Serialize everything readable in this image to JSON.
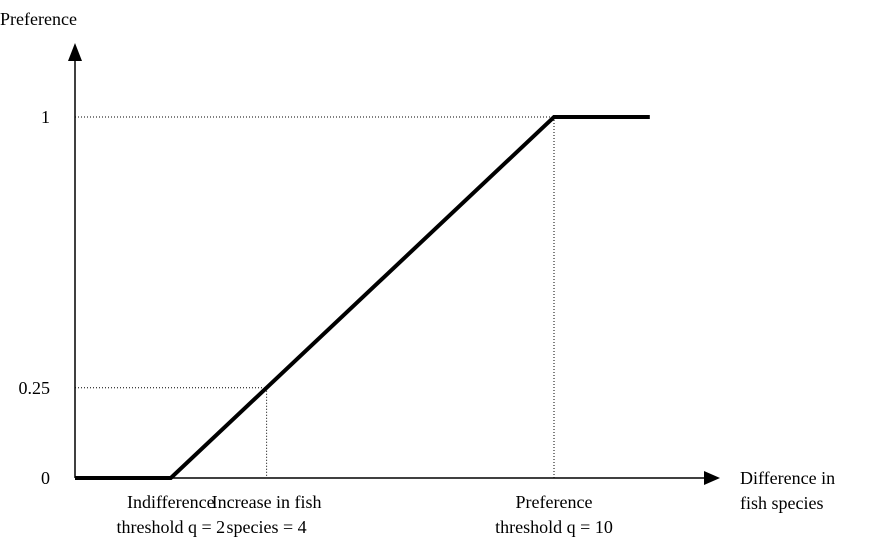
{
  "chart_data": {
    "type": "line",
    "ylabel": "Preference",
    "xlabel_lines": [
      "Difference in",
      "fish species"
    ],
    "x": [
      0,
      2,
      10,
      12
    ],
    "y": [
      0,
      0,
      1,
      1
    ],
    "xlim": [
      0,
      12
    ],
    "ylim": [
      0,
      1
    ],
    "y_ticks": [
      {
        "value": 0,
        "label": "0"
      },
      {
        "value": 0.25,
        "label": "0.25"
      },
      {
        "value": 1,
        "label": "1"
      }
    ],
    "annotations": [
      {
        "x": 2,
        "lines": [
          "Indifference",
          "threshold q = 2"
        ],
        "guide": false
      },
      {
        "x": 4,
        "y": 0.25,
        "lines": [
          "Increase in fish",
          "species = 4"
        ],
        "guide": true
      },
      {
        "x": 10,
        "y": 1,
        "lines": [
          "Preference",
          "threshold q = 10"
        ],
        "guide": true
      }
    ],
    "grid": false,
    "legend": "none",
    "colors": {
      "line": "#000000",
      "axis": "#000000",
      "guide": "#000000"
    }
  }
}
